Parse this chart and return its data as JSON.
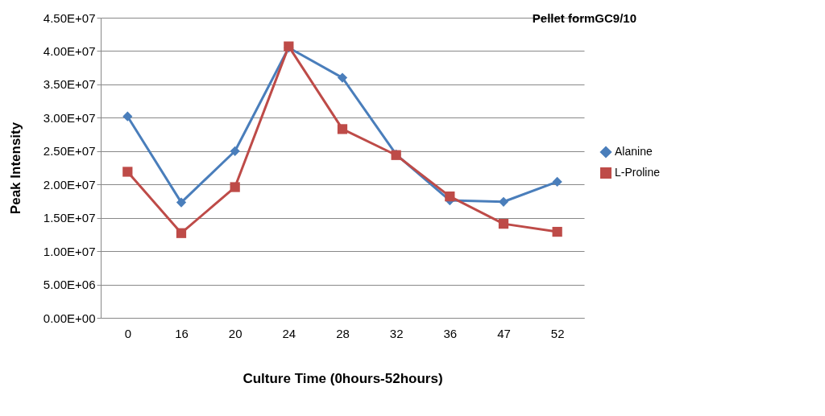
{
  "chart_data": {
    "type": "line",
    "title": "Pellet formGC9/10",
    "xlabel": "Culture Time (0hours-52hours)",
    "ylabel": "Peak Intensity",
    "categories": [
      "0",
      "16",
      "20",
      "24",
      "28",
      "32",
      "36",
      "47",
      "52"
    ],
    "series": [
      {
        "name": "Alanine",
        "color": "#4a7ebb",
        "marker": "diamond",
        "values": [
          30200000,
          17300000,
          25000000,
          40500000,
          36000000,
          24500000,
          17600000,
          17400000,
          20400000
        ]
      },
      {
        "name": "L-Proline",
        "color": "#be4b48",
        "marker": "square",
        "values": [
          21900000,
          12700000,
          19600000,
          40700000,
          28300000,
          24400000,
          18200000,
          14100000,
          12900000
        ]
      }
    ],
    "ylim": [
      0,
      45000000
    ],
    "yticks": [
      {
        "value": 0,
        "label": "0.00E+00"
      },
      {
        "value": 5000000,
        "label": "5.00E+06"
      },
      {
        "value": 10000000,
        "label": "1.00E+07"
      },
      {
        "value": 15000000,
        "label": "1.50E+07"
      },
      {
        "value": 20000000,
        "label": "2.00E+07"
      },
      {
        "value": 25000000,
        "label": "2.50E+07"
      },
      {
        "value": 30000000,
        "label": "3.00E+07"
      },
      {
        "value": 35000000,
        "label": "3.50E+07"
      },
      {
        "value": 40000000,
        "label": "4.00E+07"
      },
      {
        "value": 45000000,
        "label": "4.50E+07"
      }
    ],
    "grid": "y",
    "legend": "right",
    "line_style": "solid"
  }
}
